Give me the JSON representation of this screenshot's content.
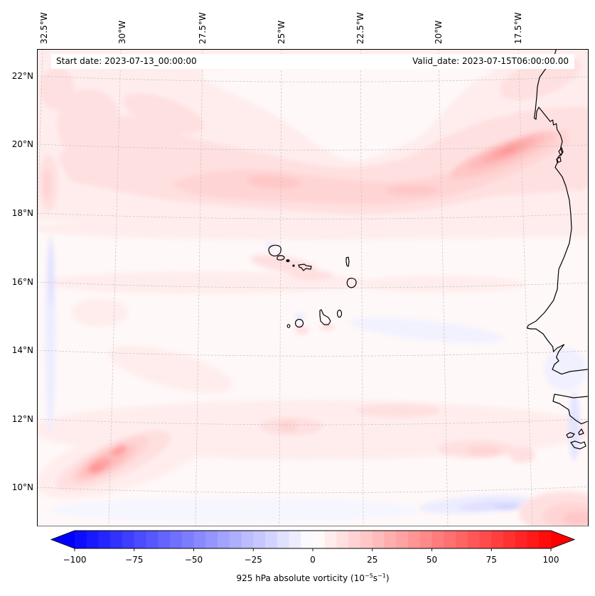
{
  "figure": {
    "start_date_label": "Start date: 2023-07-13_00:00:00",
    "valid_date_label": "Valid_date: 2023-07-15T06:00:00.00"
  },
  "map": {
    "variable": "925 hPa absolute vorticity",
    "longitude_labels": [
      "32.5°W",
      "30°W",
      "27.5°W",
      "25°W",
      "22.5°W",
      "20°W",
      "17.5°W"
    ],
    "latitude_labels": [
      "22°N",
      "20°N",
      "18°N",
      "16°N",
      "14°N",
      "12°N",
      "10°N"
    ]
  },
  "colorbar": {
    "label_text": "925 hPa absolute vorticity (10",
    "label_exp1": "−5",
    "label_unit": "s",
    "label_exp2": "−1",
    "label_close": ")",
    "min": -100,
    "max": 100,
    "step": 5,
    "extend": "both",
    "ticks": [
      -100,
      -75,
      -50,
      -25,
      0,
      25,
      50,
      75,
      100
    ],
    "tick_labels": [
      "−100",
      "−75",
      "−50",
      "−25",
      "0",
      "25",
      "50",
      "75",
      "100"
    ],
    "colormap": {
      "name": "bwr",
      "low": "#0000ff",
      "mid": "#ffffff",
      "high": "#ff0000"
    }
  }
}
